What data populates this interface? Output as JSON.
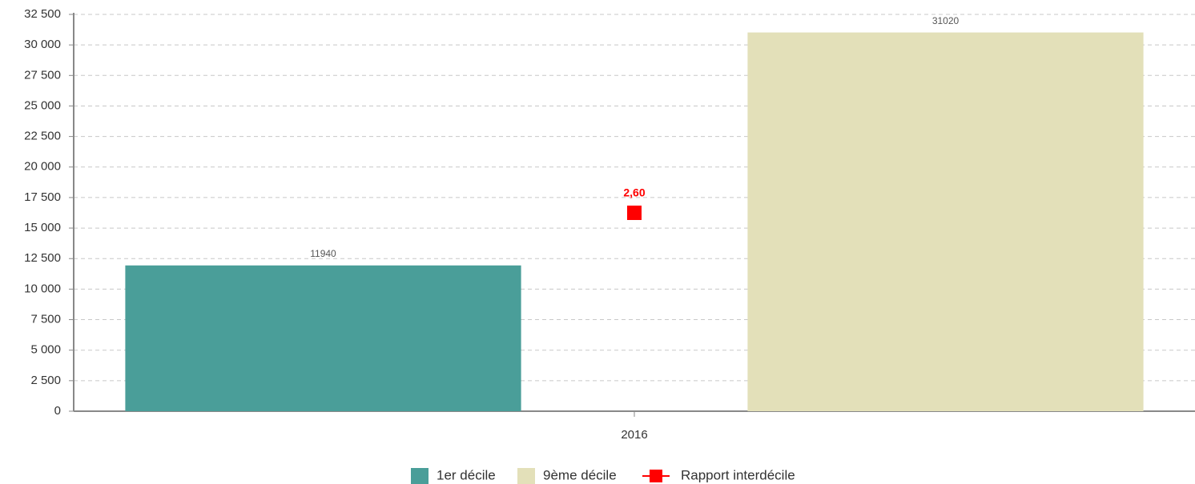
{
  "chart_data": {
    "type": "bar",
    "categories": [
      "2016"
    ],
    "series": [
      {
        "name": "1er décile",
        "color": "#4a9e99",
        "values": [
          11940
        ]
      },
      {
        "name": "9ème décile",
        "color": "#e3e0b9",
        "values": [
          31020
        ]
      },
      {
        "name": "Rapport interdécile",
        "color": "#ff0000",
        "type": "line",
        "axis": "y2",
        "values": [
          2.6
        ],
        "value_labels": [
          "2,60"
        ]
      }
    ],
    "ylim": [
      0,
      32500
    ],
    "yticks": [
      0,
      {
        "value": 2500,
        "label": "2 500"
      },
      {
        "value": 5000,
        "label": "5 000"
      },
      {
        "value": 7500,
        "label": "7 500"
      },
      {
        "value": 10000,
        "label": "10 000"
      },
      {
        "value": 12500,
        "label": "12 500"
      },
      {
        "value": 15000,
        "label": "15 000"
      },
      {
        "value": 17500,
        "label": "17 500"
      },
      {
        "value": 20000,
        "label": "20 000"
      },
      {
        "value": 22500,
        "label": "22 500"
      },
      {
        "value": 25000,
        "label": "25 000"
      },
      {
        "value": 27500,
        "label": "27 500"
      },
      {
        "value": 30000,
        "label": "30 000"
      },
      {
        "value": 32500,
        "label": "32 500"
      }
    ],
    "y2lim": [
      0,
      5.2
    ],
    "grid": true,
    "legend": "bottom"
  }
}
